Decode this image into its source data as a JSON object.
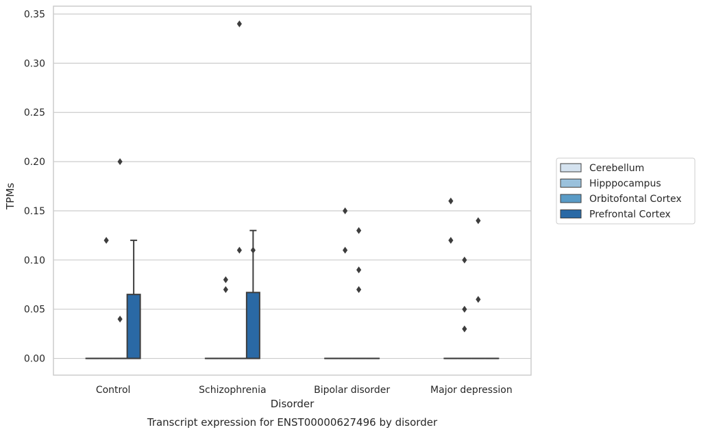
{
  "chart_data": {
    "type": "box",
    "title": "Transcript expression for ENST00000627496 by disorder",
    "xlabel": "Disorder",
    "ylabel": "TPMs",
    "ylim": [
      -0.017,
      0.358
    ],
    "yticks": [
      0.0,
      0.05,
      0.1,
      0.15,
      0.2,
      0.25,
      0.3,
      0.35
    ],
    "ytick_labels": [
      "0.00",
      "0.05",
      "0.10",
      "0.15",
      "0.20",
      "0.25",
      "0.30",
      "0.35"
    ],
    "grid": "horizontal",
    "legend_position": "outside right",
    "categories": [
      "Control",
      "Schizophrenia",
      "Bipolar disorder",
      "Major depression"
    ],
    "series": [
      {
        "name": "Cerebellum",
        "color": "#d4e2ef",
        "boxes": [
          {
            "category": "Control",
            "q1": 0,
            "median": 0,
            "q3": 0,
            "whisker_low": 0,
            "whisker_high": 0,
            "outliers": []
          },
          {
            "category": "Schizophrenia",
            "q1": 0,
            "median": 0,
            "q3": 0,
            "whisker_low": 0,
            "whisker_high": 0,
            "outliers": []
          },
          {
            "category": "Bipolar disorder",
            "q1": 0,
            "median": 0,
            "q3": 0,
            "whisker_low": 0,
            "whisker_high": 0,
            "outliers": []
          },
          {
            "category": "Major depression",
            "q1": 0,
            "median": 0,
            "q3": 0,
            "whisker_low": 0,
            "whisker_high": 0,
            "outliers": [
              0.16,
              0.12
            ]
          }
        ]
      },
      {
        "name": "Hipppocampus",
        "color": "#9ac1dc",
        "boxes": [
          {
            "category": "Control",
            "q1": 0,
            "median": 0,
            "q3": 0,
            "whisker_low": 0,
            "whisker_high": 0,
            "outliers": [
              0.12
            ]
          },
          {
            "category": "Schizophrenia",
            "q1": 0,
            "median": 0,
            "q3": 0,
            "whisker_low": 0,
            "whisker_high": 0,
            "outliers": [
              0.08,
              0.07
            ]
          },
          {
            "category": "Bipolar disorder",
            "q1": 0,
            "median": 0,
            "q3": 0,
            "whisker_low": 0,
            "whisker_high": 0,
            "outliers": [
              0.15,
              0.11
            ]
          },
          {
            "category": "Major depression",
            "q1": 0,
            "median": 0,
            "q3": 0,
            "whisker_low": 0,
            "whisker_high": 0,
            "outliers": [
              0.1,
              0.05,
              0.03
            ]
          }
        ]
      },
      {
        "name": "Orbitofontal Cortex",
        "color": "#5a9bc6",
        "boxes": [
          {
            "category": "Control",
            "q1": 0,
            "median": 0,
            "q3": 0,
            "whisker_low": 0,
            "whisker_high": 0,
            "outliers": [
              0.2,
              0.04
            ]
          },
          {
            "category": "Schizophrenia",
            "q1": 0,
            "median": 0,
            "q3": 0,
            "whisker_low": 0,
            "whisker_high": 0,
            "outliers": [
              0.34,
              0.11
            ]
          },
          {
            "category": "Bipolar disorder",
            "q1": 0,
            "median": 0,
            "q3": 0,
            "whisker_low": 0,
            "whisker_high": 0,
            "outliers": [
              0.13,
              0.09,
              0.07
            ]
          },
          {
            "category": "Major depression",
            "q1": 0,
            "median": 0,
            "q3": 0,
            "whisker_low": 0,
            "whisker_high": 0,
            "outliers": [
              0.14,
              0.06
            ]
          }
        ]
      },
      {
        "name": "Prefrontal Cortex",
        "color": "#2a69a5",
        "boxes": [
          {
            "category": "Control",
            "q1": 0,
            "median": 0,
            "q3": 0.065,
            "whisker_low": 0,
            "whisker_high": 0.12,
            "outliers": []
          },
          {
            "category": "Schizophrenia",
            "q1": 0,
            "median": 0,
            "q3": 0.067,
            "whisker_low": 0,
            "whisker_high": 0.13,
            "outliers": [
              0.11
            ]
          },
          {
            "category": "Bipolar disorder",
            "q1": 0,
            "median": 0,
            "q3": 0,
            "whisker_low": 0,
            "whisker_high": 0,
            "outliers": []
          },
          {
            "category": "Major depression",
            "q1": 0,
            "median": 0,
            "q3": 0,
            "whisker_low": 0,
            "whisker_high": 0,
            "outliers": []
          }
        ]
      }
    ]
  }
}
